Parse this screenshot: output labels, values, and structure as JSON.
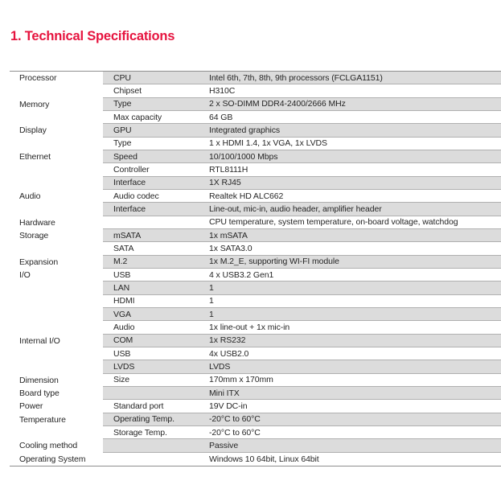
{
  "title": "1. Technical Specifications",
  "colors": {
    "accent": "#e6143f",
    "shade": "#dcdcdc",
    "separator": "#b0b0b0",
    "table-border": "#8f8f8f",
    "text": "#262626"
  },
  "table": {
    "rows": [
      {
        "category": "Processor",
        "item": "CPU",
        "value": "Intel 6th, 7th, 8th, 9th processors (FCLGA1151)",
        "shaded": true
      },
      {
        "category": "",
        "item": "Chipset",
        "value": "H310C",
        "shaded": false
      },
      {
        "category": "Memory",
        "item": "Type",
        "value": "2 x SO-DIMM DDR4-2400/2666 MHz",
        "shaded": true
      },
      {
        "category": "",
        "item": "Max capacity",
        "value": "64 GB",
        "shaded": false
      },
      {
        "category": "Display",
        "item": "GPU",
        "value": "Integrated graphics",
        "shaded": true
      },
      {
        "category": "",
        "item": "Type",
        "value": "1 x HDMI 1.4, 1x VGA, 1x LVDS",
        "shaded": false
      },
      {
        "category": "Ethernet",
        "item": "Speed",
        "value": "10/100/1000 Mbps",
        "shaded": true
      },
      {
        "category": "",
        "item": "Controller",
        "value": "RTL8111H",
        "shaded": false
      },
      {
        "category": "",
        "item": "Interface",
        "value": "1X RJ45",
        "shaded": true
      },
      {
        "category": "Audio",
        "item": "Audio codec",
        "value": "Realtek HD ALC662",
        "shaded": false
      },
      {
        "category": "",
        "item": "Interface",
        "value": "Line-out, mic-in, audio header, amplifier header",
        "shaded": true
      },
      {
        "category": "Hardware",
        "item": "",
        "value": "CPU temperature, system temperature, on-board voltage, watchdog",
        "shaded": false
      },
      {
        "category": "Storage",
        "item": "mSATA",
        "value": "1x mSATA",
        "shaded": true
      },
      {
        "category": "",
        "item": "SATA",
        "value": "1x SATA3.0",
        "shaded": false
      },
      {
        "category": "Expansion",
        "item": "M.2",
        "value": "1x M.2_E, supporting WI-FI module",
        "shaded": true
      },
      {
        "category": "I/O",
        "item": "USB",
        "value": "4 x USB3.2 Gen1",
        "shaded": false
      },
      {
        "category": "",
        "item": "LAN",
        "value": "1",
        "shaded": true
      },
      {
        "category": "",
        "item": "HDMI",
        "value": "1",
        "shaded": false
      },
      {
        "category": "",
        "item": "VGA",
        "value": "1",
        "shaded": true
      },
      {
        "category": "",
        "item": "Audio",
        "value": "1x line-out + 1x mic-in",
        "shaded": false
      },
      {
        "category": "Internal I/O",
        "item": "COM",
        "value": "1x RS232",
        "shaded": true
      },
      {
        "category": "",
        "item": "USB",
        "value": "4x USB2.0",
        "shaded": false
      },
      {
        "category": "",
        "item": "LVDS",
        "value": "LVDS",
        "shaded": true
      },
      {
        "category": "Dimension",
        "item": "Size",
        "value": "170mm x 170mm",
        "shaded": false
      },
      {
        "category": "Board type",
        "item": "",
        "value": "Mini ITX",
        "shaded": true
      },
      {
        "category": "Power",
        "item": "Standard port",
        "value": "19V DC-in",
        "shaded": false
      },
      {
        "category": "Temperature",
        "item": "Operating Temp.",
        "value": "-20°C to 60°C",
        "shaded": true
      },
      {
        "category": "",
        "item": "Storage Temp.",
        "value": "-20°C to 60°C",
        "shaded": false
      },
      {
        "category": "Cooling method",
        "item": "",
        "value": "Passive",
        "shaded": true
      },
      {
        "category": "Operating System",
        "item": "",
        "value": "Windows 10 64bit, Linux 64bit",
        "shaded": false
      }
    ]
  }
}
